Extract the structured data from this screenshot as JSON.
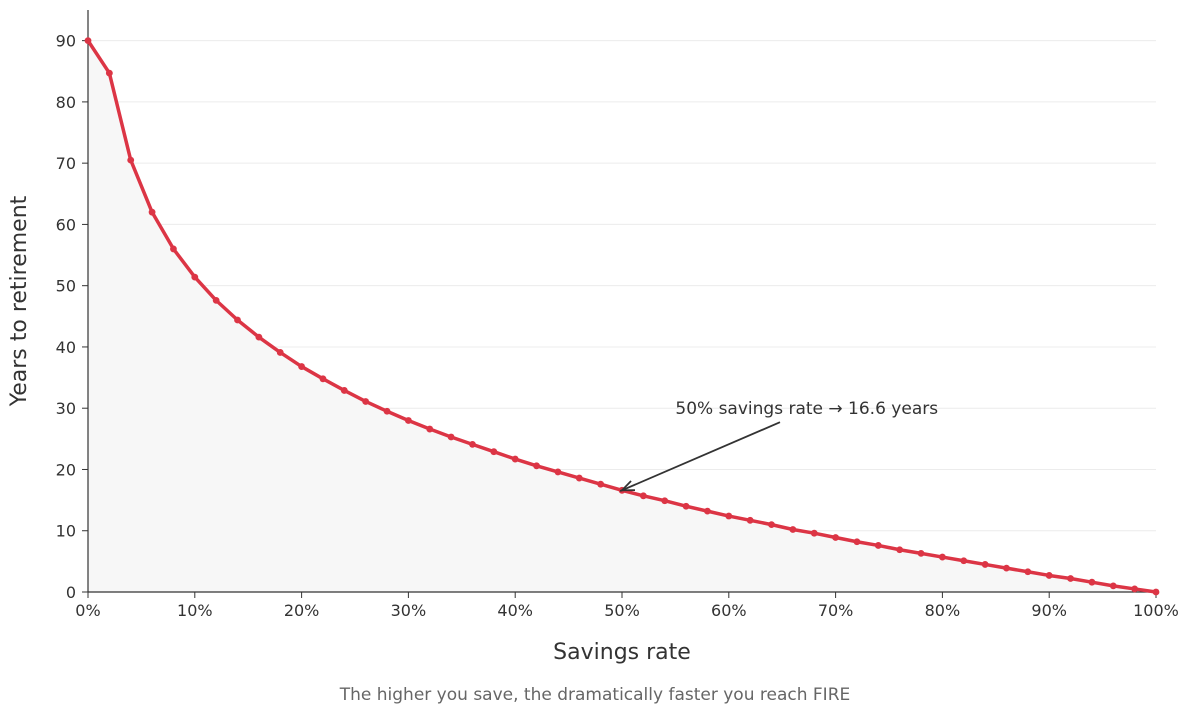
{
  "chart_data": {
    "type": "area",
    "title": "",
    "caption": "The higher you save, the dramatically faster you reach FIRE",
    "xlabel": "Savings rate",
    "ylabel": "Years to retirement",
    "xlim": [
      0,
      100
    ],
    "ylim": [
      0,
      95
    ],
    "x_ticks": [
      0,
      10,
      20,
      30,
      40,
      50,
      60,
      70,
      80,
      90,
      100
    ],
    "x_tick_labels": [
      "0%",
      "10%",
      "20%",
      "30%",
      "40%",
      "50%",
      "60%",
      "70%",
      "80%",
      "90%",
      "100%"
    ],
    "y_ticks": [
      0,
      10,
      20,
      30,
      40,
      50,
      60,
      70,
      80,
      90
    ],
    "y_tick_labels": [
      "0",
      "10",
      "20",
      "30",
      "40",
      "50",
      "60",
      "70",
      "80",
      "90"
    ],
    "grid": "horizontal",
    "line_color": "#dc3545",
    "fill_color": "#f7f7f7",
    "series": [
      {
        "x": [
          0,
          2,
          4,
          6,
          8,
          10,
          12,
          14,
          16,
          18,
          20,
          22,
          24,
          26,
          28,
          30,
          32,
          34,
          36,
          38,
          40,
          42,
          44,
          46,
          48,
          50,
          52,
          54,
          56,
          58,
          60,
          62,
          64,
          66,
          68,
          70,
          72,
          74,
          76,
          78,
          80,
          82,
          84,
          86,
          88,
          90,
          92,
          94,
          96,
          98,
          100
        ],
        "values": [
          90,
          84.7,
          70.5,
          62.0,
          56.0,
          51.4,
          47.6,
          44.4,
          41.6,
          39.1,
          36.8,
          34.8,
          32.9,
          31.1,
          29.5,
          28.0,
          26.6,
          25.3,
          24.1,
          22.9,
          21.7,
          20.6,
          19.6,
          18.6,
          17.6,
          16.6,
          15.7,
          14.9,
          14.0,
          13.2,
          12.4,
          11.7,
          11.0,
          10.2,
          9.6,
          8.9,
          8.2,
          7.6,
          6.9,
          6.3,
          5.7,
          5.1,
          4.5,
          3.9,
          3.3,
          2.7,
          2.2,
          1.6,
          1.0,
          0.5,
          0
        ]
      }
    ],
    "annotation": {
      "text": "50% savings rate → 16.6 years",
      "x": 50,
      "y": 16.6,
      "text_x": 55,
      "text_y": 30
    }
  }
}
